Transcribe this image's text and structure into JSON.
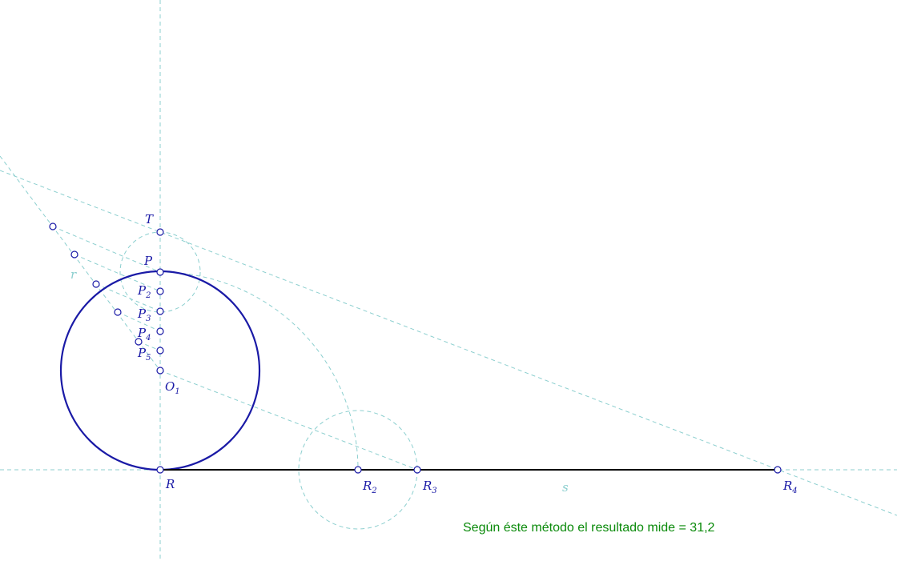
{
  "labels": [
    {
      "text": "T"
    },
    {
      "text": "P"
    },
    {
      "text": "P",
      "sub": "2"
    },
    {
      "text": "P",
      "sub": "3"
    },
    {
      "text": "P",
      "sub": "4"
    },
    {
      "text": "P",
      "sub": "5"
    },
    {
      "text": "O",
      "sub": "1"
    },
    {
      "text": "R"
    },
    {
      "text": "R",
      "sub": "2"
    },
    {
      "text": "R",
      "sub": "3"
    },
    {
      "text": "R",
      "sub": "4"
    },
    {
      "text": "r"
    },
    {
      "text": "s"
    }
  ],
  "result_text": "Según éste método el resultado mide = 31,2"
}
